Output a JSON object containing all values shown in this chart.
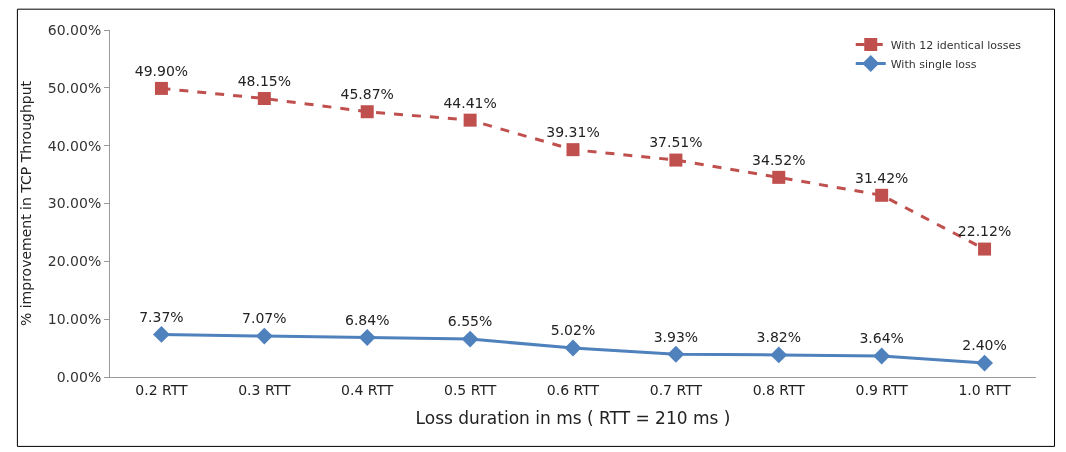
{
  "chart_data": {
    "type": "line",
    "xlabel": "Loss duration in ms ( RTT = 210 ms )",
    "ylabel": "% improvement in TCP Throughput",
    "categories": [
      "0.2 RTT",
      "0.3 RTT",
      "0.4 RTT",
      "0.5 RTT",
      "0.6 RTT",
      "0.7 RTT",
      "0.8 RTT",
      "0.9 RTT",
      "1.0 RTT"
    ],
    "series": [
      {
        "name": "With 12 identical losses",
        "color": "#c0504d",
        "marker": "square",
        "line_style": "dashed",
        "values": [
          49.9,
          48.15,
          45.87,
          44.41,
          39.31,
          37.51,
          34.52,
          31.42,
          22.12
        ],
        "value_labels": [
          "49.90%",
          "48.15%",
          "45.87%",
          "44.41%",
          "39.31%",
          "37.51%",
          "34.52%",
          "31.42%",
          "22.12%"
        ]
      },
      {
        "name": "With single loss",
        "color": "#4f81bd",
        "marker": "diamond",
        "line_style": "solid",
        "values": [
          7.37,
          7.07,
          6.84,
          6.55,
          5.02,
          3.93,
          3.82,
          3.64,
          2.4
        ],
        "value_labels": [
          "7.37%",
          "7.07%",
          "6.84%",
          "6.55%",
          "5.02%",
          "3.93%",
          "3.82%",
          "3.64%",
          "2.40%"
        ]
      }
    ],
    "ylim": [
      0,
      60
    ],
    "yticks": [
      {
        "value": 0,
        "label": "0.00%"
      },
      {
        "value": 10,
        "label": "10.00%"
      },
      {
        "value": 20,
        "label": "20.00%"
      },
      {
        "value": 30,
        "label": "30.00%"
      },
      {
        "value": 40,
        "label": "40.00%"
      },
      {
        "value": 50,
        "label": "50.00%"
      },
      {
        "value": 60,
        "label": "60.00%"
      }
    ],
    "legend": "top right"
  }
}
